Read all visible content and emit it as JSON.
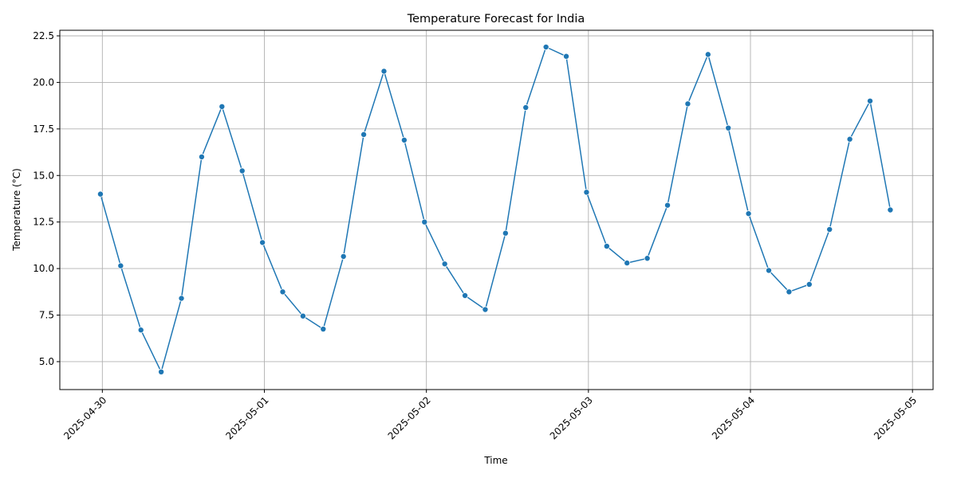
{
  "chart_data": {
    "type": "line",
    "title": "Temperature Forecast for India",
    "xlabel": "Time",
    "ylabel": "Temperature (°C)",
    "grid": true,
    "x_axis": "date",
    "xlim": [
      "2025-04-29T17:42",
      "2025-05-05T03:03"
    ],
    "ylim": [
      3.5,
      22.8
    ],
    "x_ticks": [
      "2025-04-30",
      "2025-05-01",
      "2025-05-02",
      "2025-05-03",
      "2025-05-04",
      "2025-05-05"
    ],
    "y_ticks": [
      "5.0",
      "7.5",
      "10.0",
      "12.5",
      "15.0",
      "17.5",
      "20.0",
      "22.5"
    ],
    "series": [
      {
        "color": "#1f77b4",
        "marker": "circle",
        "x": [
          "2025-04-29T23:43",
          "2025-04-30T02:43",
          "2025-04-30T05:43",
          "2025-04-30T08:43",
          "2025-04-30T11:43",
          "2025-04-30T14:43",
          "2025-04-30T17:43",
          "2025-04-30T20:43",
          "2025-04-30T23:43",
          "2025-05-01T02:43",
          "2025-05-01T05:43",
          "2025-05-01T08:43",
          "2025-05-01T11:43",
          "2025-05-01T14:43",
          "2025-05-01T17:43",
          "2025-05-01T20:43",
          "2025-05-01T23:43",
          "2025-05-02T02:43",
          "2025-05-02T05:43",
          "2025-05-02T08:43",
          "2025-05-02T11:43",
          "2025-05-02T14:43",
          "2025-05-02T17:43",
          "2025-05-02T20:43",
          "2025-05-02T23:43",
          "2025-05-03T02:43",
          "2025-05-03T05:43",
          "2025-05-03T08:43",
          "2025-05-03T11:43",
          "2025-05-03T14:43",
          "2025-05-03T17:43",
          "2025-05-03T20:43",
          "2025-05-03T23:43",
          "2025-05-04T02:43",
          "2025-05-04T05:43",
          "2025-05-04T08:43",
          "2025-05-04T11:43",
          "2025-05-04T14:43",
          "2025-05-04T17:43",
          "2025-05-04T20:43"
        ],
        "y": [
          14.0,
          10.15,
          6.7,
          4.45,
          8.4,
          16.0,
          18.7,
          15.25,
          11.4,
          8.75,
          7.45,
          6.75,
          10.65,
          17.2,
          20.6,
          16.9,
          12.5,
          10.25,
          8.55,
          7.8,
          11.9,
          18.65,
          21.9,
          21.4,
          14.1,
          11.2,
          10.3,
          10.55,
          13.4,
          18.85,
          21.5,
          17.55,
          12.95,
          9.9,
          8.75,
          9.15,
          12.1,
          16.95,
          19.0,
          13.15
        ]
      }
    ]
  }
}
